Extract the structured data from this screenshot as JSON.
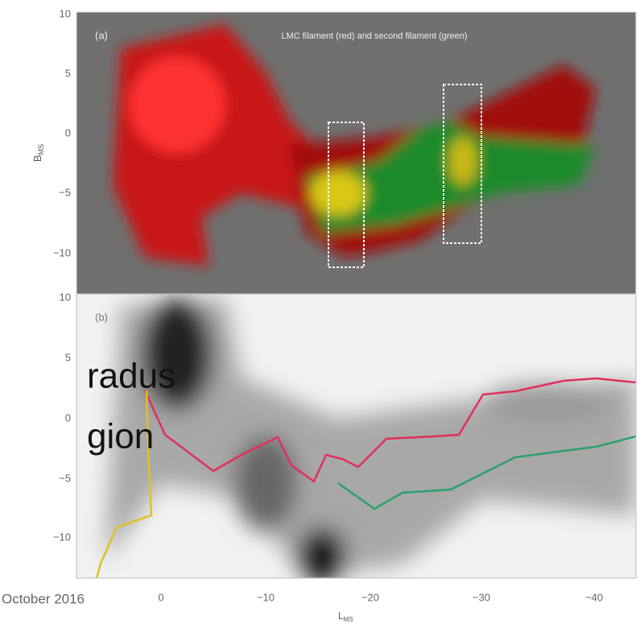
{
  "panel_a": {
    "label": "(a)",
    "title": "LMC filament (red) and second filament (green)",
    "y_axis_label": {
      "main": "B",
      "sub": "MS"
    },
    "yticks": [
      "10",
      "5",
      "0",
      "−5",
      "−10"
    ]
  },
  "panel_b": {
    "label": "(b)",
    "yticks": [
      "10",
      "5",
      "0",
      "−5",
      "−10"
    ]
  },
  "x_axis": {
    "label": {
      "main": "L",
      "sub": "MS"
    },
    "ticks": [
      "0",
      "−10",
      "−20",
      "−30",
      "−40"
    ]
  },
  "slide_text": [
    "radus",
    "gion"
  ],
  "footer_date": "October 2016"
}
